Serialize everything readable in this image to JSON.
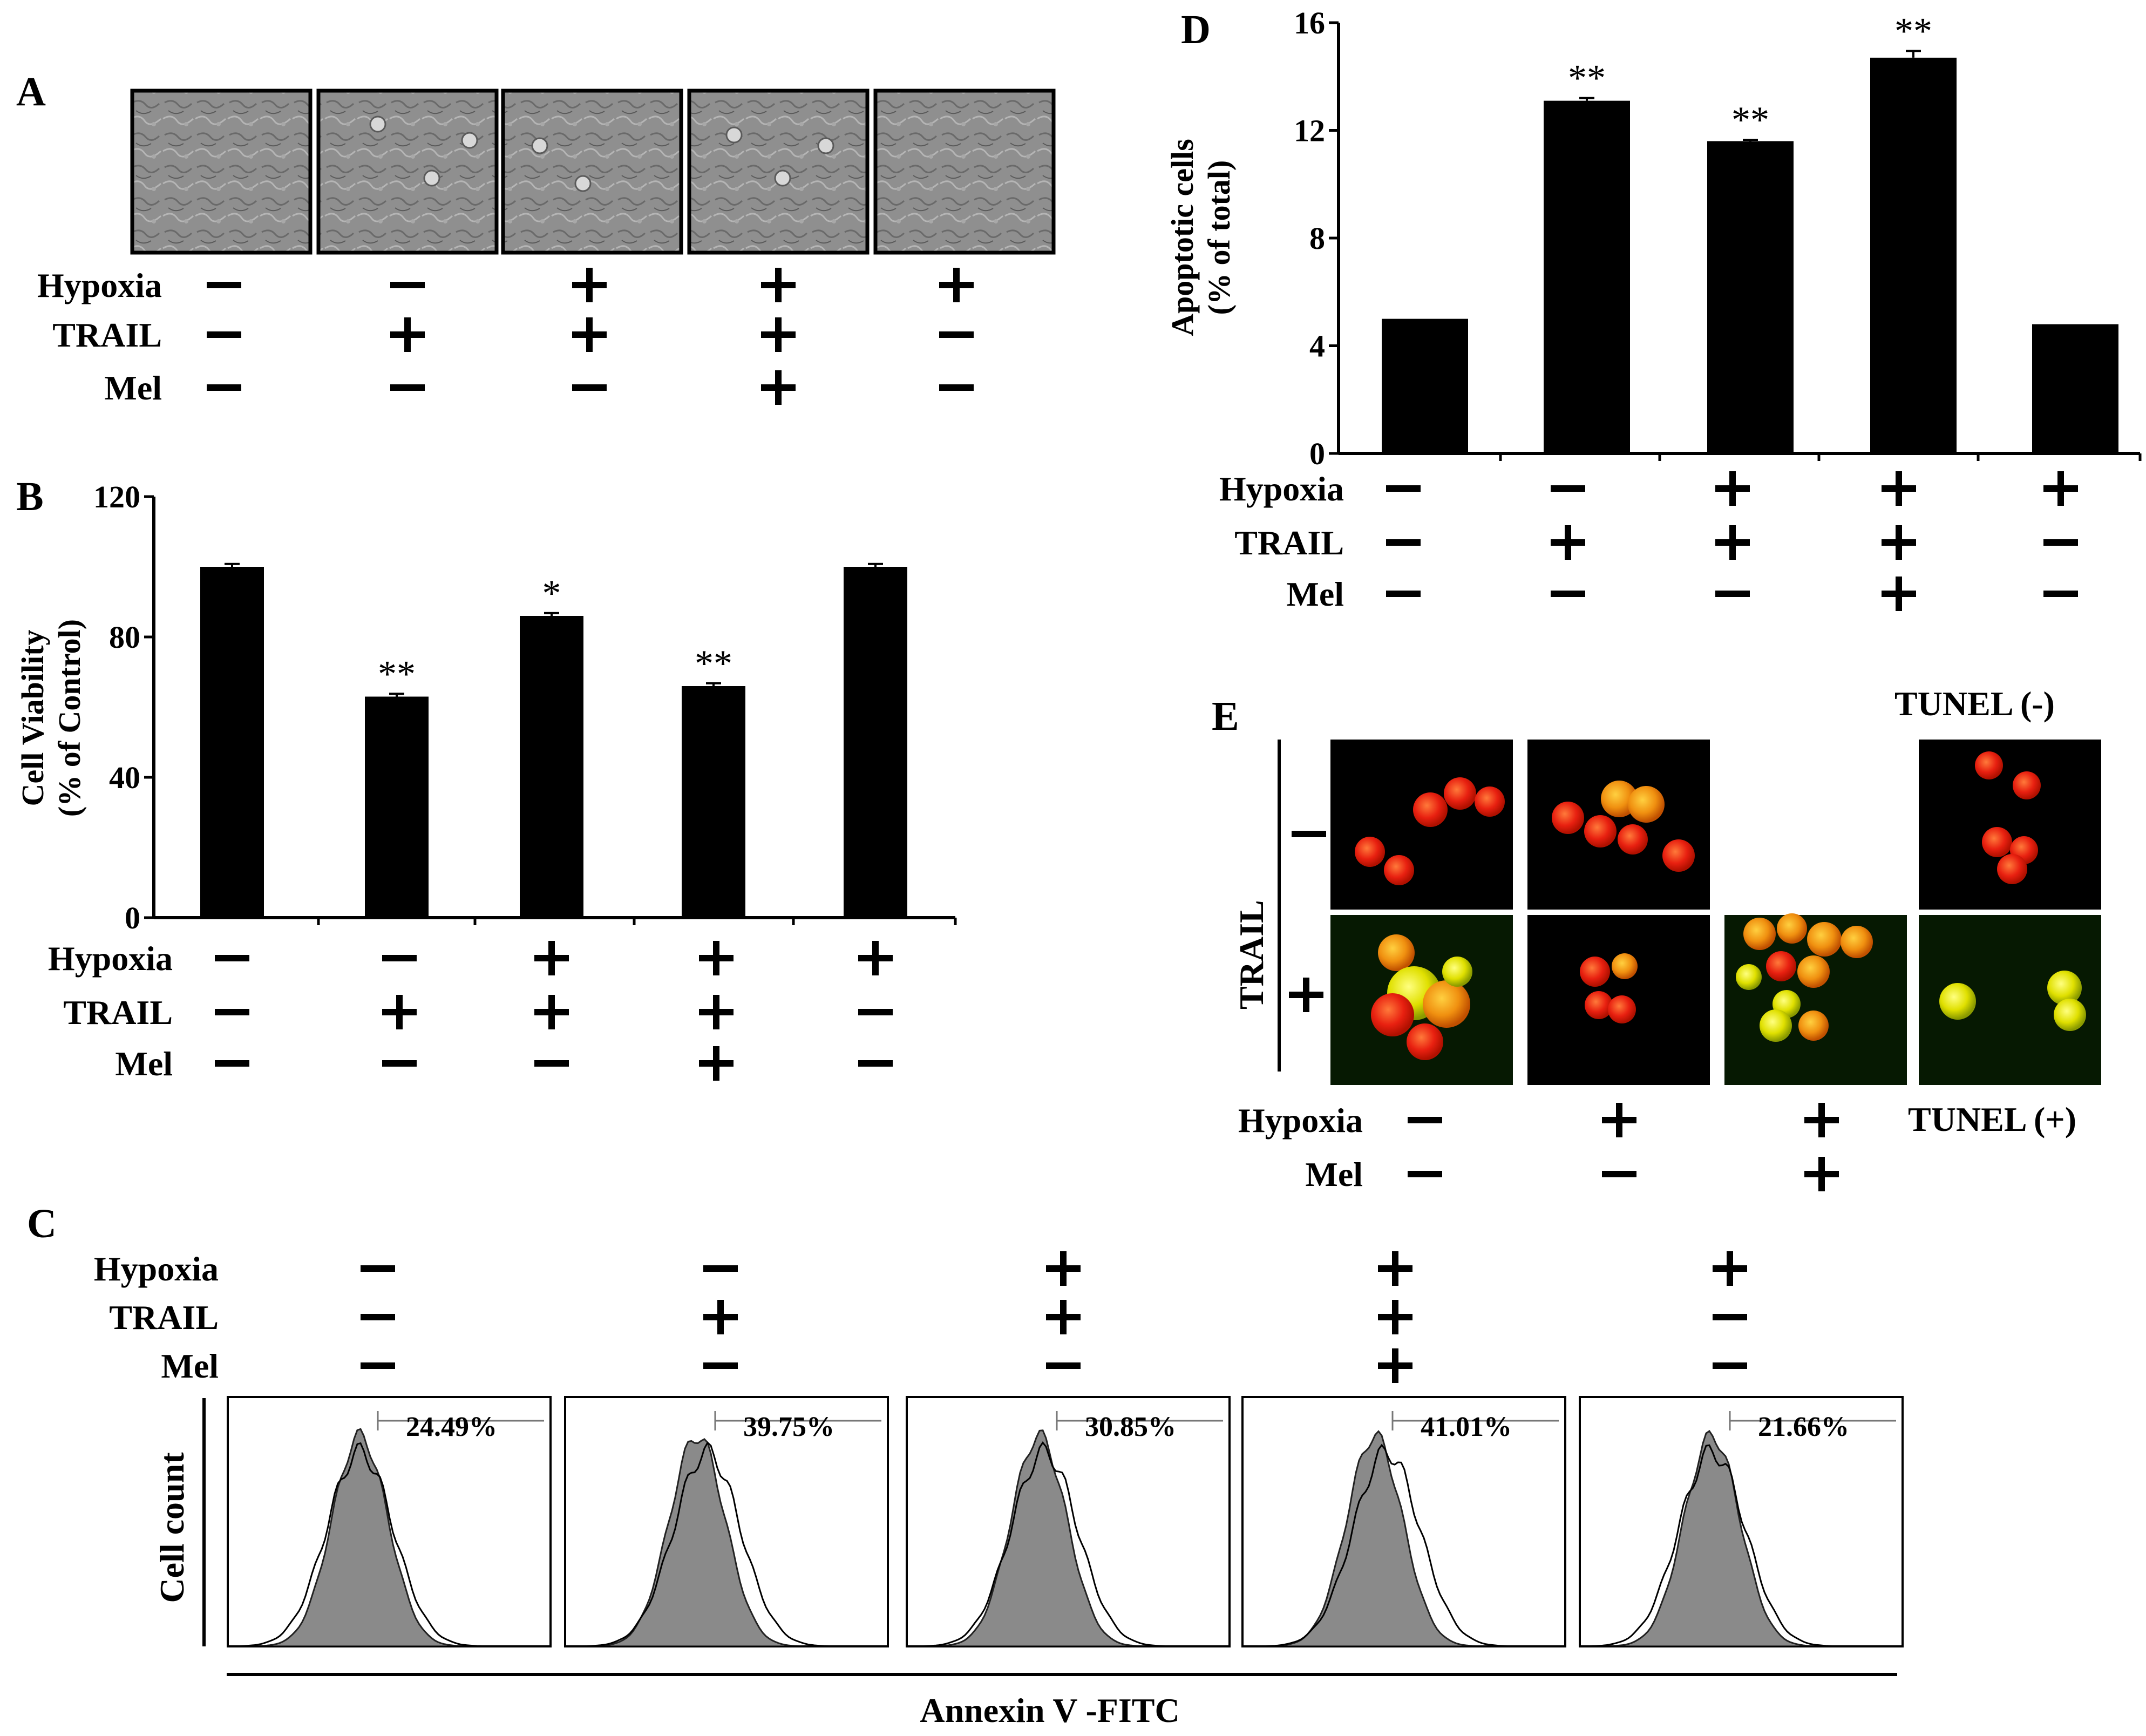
{
  "figure": {
    "panel_labels": [
      "A",
      "B",
      "C",
      "D",
      "E"
    ],
    "conditions": {
      "row_labels": [
        "Hypoxia",
        "TRAIL",
        "Mel"
      ],
      "hypoxia": [
        "−",
        "−",
        "+",
        "+",
        "+"
      ],
      "trail": [
        "−",
        "+",
        "+",
        "+",
        "−"
      ],
      "mel": [
        "−",
        "−",
        "−",
        "+",
        "−"
      ]
    },
    "panel_e": {
      "trail_label": "TRAIL",
      "row_signs": [
        "−",
        "+"
      ],
      "tunel_neg": "TUNEL (-)",
      "tunel_pos": "TUNEL (+)",
      "hypoxia": [
        "−",
        "+",
        "+"
      ],
      "mel": [
        "−",
        "−",
        "+"
      ],
      "row_labels": [
        "Hypoxia",
        "Mel"
      ]
    },
    "panel_c": {
      "ylabel": "Cell count",
      "xlabel": "Annexin V -FITC",
      "percentages": [
        "24.49%",
        "39.75%",
        "30.85%",
        "41.01%",
        "21.66%"
      ]
    },
    "colors": {
      "bar": "#000000",
      "micrograph": "#8e8e8e",
      "histogram_fill": "#8a8a8a",
      "fluor_red": "#e82010",
      "fluor_yellow": "#e8e000"
    }
  },
  "chart_data": [
    {
      "id": "B",
      "type": "bar",
      "categories": [
        "1",
        "2",
        "3",
        "4",
        "5"
      ],
      "values": [
        100,
        63,
        86,
        66,
        100
      ],
      "errors": [
        0.8,
        0.8,
        0.8,
        0.8,
        0.8
      ],
      "significance": [
        "",
        "**",
        "*",
        "**",
        ""
      ],
      "ylabel": "Cell Viability (% of Control)",
      "ylim": [
        0,
        120
      ],
      "yticks": [
        0,
        40,
        80,
        120
      ]
    },
    {
      "id": "D",
      "type": "bar",
      "categories": [
        "1",
        "2",
        "3",
        "4",
        "5"
      ],
      "values": [
        5.0,
        13.1,
        11.6,
        14.7,
        4.8
      ],
      "errors": [
        0,
        0.1,
        0.05,
        0.25,
        0
      ],
      "significance": [
        "",
        "**",
        "**",
        "**",
        ""
      ],
      "ylabel": "Apoptotic cells (% of total)",
      "ylim": [
        0,
        16
      ],
      "yticks": [
        0,
        4,
        8,
        12,
        16
      ]
    }
  ]
}
